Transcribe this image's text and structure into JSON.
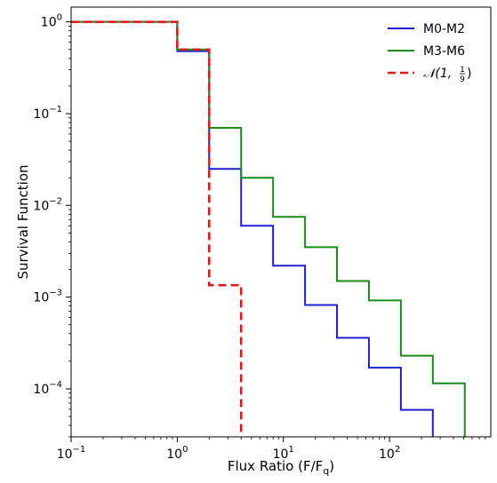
{
  "chart_data": {
    "type": "line",
    "drawstyle": "steps-post",
    "xlabel": "Flux Ratio (F/F_q)",
    "ylabel": "Survival Function",
    "xscale": "log",
    "yscale": "log",
    "xlim": [
      0.1,
      900
    ],
    "ylim": [
      3e-05,
      1.45
    ],
    "x_ticks": [
      {
        "base": "10",
        "exp": "−1",
        "value": 0.1
      },
      {
        "base": "10",
        "exp": "0",
        "value": 1
      },
      {
        "base": "10",
        "exp": "1",
        "value": 10
      },
      {
        "base": "10",
        "exp": "2",
        "value": 100
      }
    ],
    "y_ticks": [
      {
        "base": "10",
        "exp": "0",
        "value": 1
      },
      {
        "base": "10",
        "exp": "−1",
        "value": 0.1
      },
      {
        "base": "10",
        "exp": "−2",
        "value": 0.01
      },
      {
        "base": "10",
        "exp": "−3",
        "value": 0.001
      },
      {
        "base": "10",
        "exp": "−4",
        "value": 0.0001
      }
    ],
    "legend_position": "top-right",
    "series": [
      {
        "name": "M0-M2",
        "color": "#1f1fd2",
        "dash": "solid",
        "x": [
          0.1,
          1,
          2,
          4,
          8,
          16,
          32,
          64,
          128,
          256
        ],
        "y": [
          1.0,
          0.48,
          0.025,
          0.006,
          0.0022,
          0.00082,
          0.00036,
          0.00017,
          5.9e-05,
          3e-05
        ],
        "x_end": 256
      },
      {
        "name": "M3-M6",
        "color": "#1a8c1a",
        "dash": "solid",
        "x": [
          0.1,
          1,
          2,
          4,
          8,
          16,
          32,
          64,
          128,
          256,
          512
        ],
        "y": [
          1.0,
          0.5,
          0.07,
          0.02,
          0.0075,
          0.0035,
          0.0015,
          0.00092,
          0.00023,
          0.000115,
          3e-05
        ],
        "x_end": 512
      },
      {
        "name": "𝒩(1, 1/9)",
        "color": "#e11a1a",
        "dash": "dashed",
        "x": [
          0.1,
          1,
          2,
          4
        ],
        "y": [
          1.0,
          0.5,
          0.00135,
          3e-05
        ],
        "x_end": 4
      }
    ]
  }
}
